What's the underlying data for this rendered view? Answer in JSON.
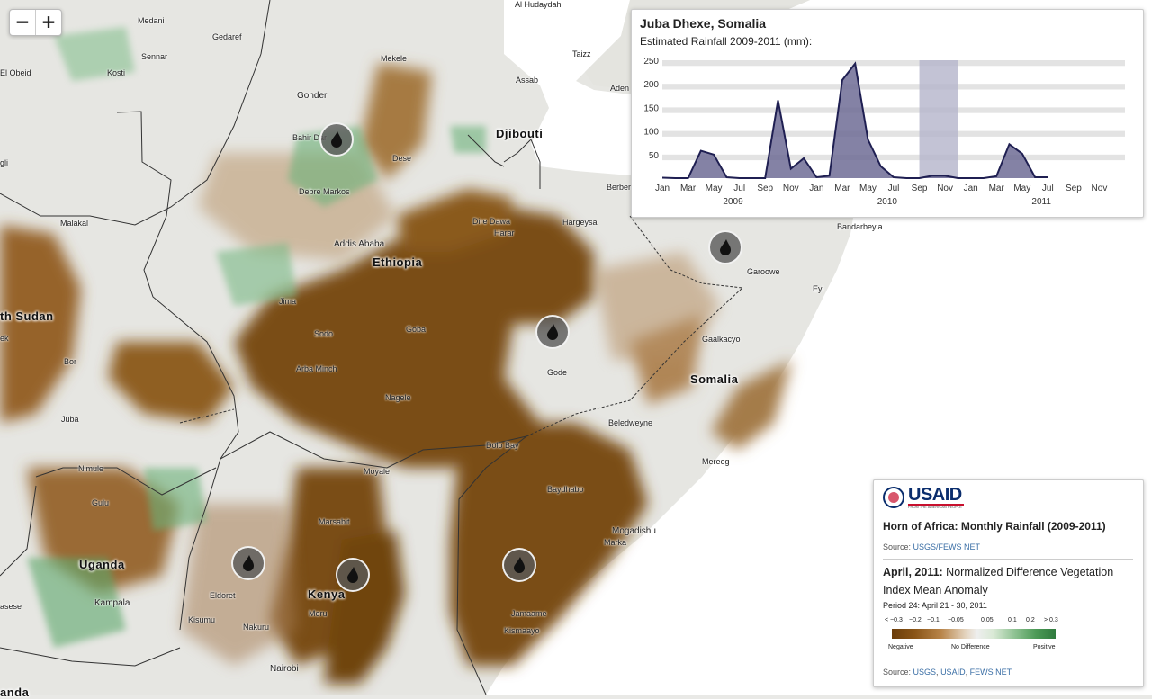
{
  "zoom": {
    "minus": "−",
    "plus": "+"
  },
  "countries": [
    {
      "label": "Djibouti"
    },
    {
      "label": "Ethiopia"
    },
    {
      "label": "th Sudan"
    },
    {
      "label": "Somalia"
    },
    {
      "label": "Uganda"
    },
    {
      "label": "Kenya"
    },
    {
      "label": "anda"
    }
  ],
  "places": [
    {
      "label": "Al Hudaydah"
    },
    {
      "label": "Medani"
    },
    {
      "label": "Gedaref"
    },
    {
      "label": "Sennar"
    },
    {
      "label": "Mekele"
    },
    {
      "label": "Taizz"
    },
    {
      "label": "El Obeid"
    },
    {
      "label": "Kosti"
    },
    {
      "label": "Assab"
    },
    {
      "label": "Aden"
    },
    {
      "label": "Gonder"
    },
    {
      "label": "Bahir Dar"
    },
    {
      "label": "Dese"
    },
    {
      "label": "gli"
    },
    {
      "label": "Debre Markos"
    },
    {
      "label": "Berbera"
    },
    {
      "label": "Malakal"
    },
    {
      "label": "Dire Dawa"
    },
    {
      "label": "Harar"
    },
    {
      "label": "Hargeysa"
    },
    {
      "label": "Bandarbeyla"
    },
    {
      "label": "Addis Ababa"
    },
    {
      "label": "Garoowe"
    },
    {
      "label": "Eyl"
    },
    {
      "label": "Jima"
    },
    {
      "label": "Goba"
    },
    {
      "label": "Sodo"
    },
    {
      "label": "Gaalkacyo"
    },
    {
      "label": "ek"
    },
    {
      "label": "Bor"
    },
    {
      "label": "Arba Minch"
    },
    {
      "label": "Gode"
    },
    {
      "label": "Nagele"
    },
    {
      "label": "Juba"
    },
    {
      "label": "Beledweyne"
    },
    {
      "label": "Dolo Bay"
    },
    {
      "label": "Nimule"
    },
    {
      "label": "Moyale"
    },
    {
      "label": "Mereeg"
    },
    {
      "label": "Gulu"
    },
    {
      "label": "Baydhabo"
    },
    {
      "label": "Marsabit"
    },
    {
      "label": "Mogadishu"
    },
    {
      "label": "Marka"
    },
    {
      "label": "Eldoret"
    },
    {
      "label": "Kampala"
    },
    {
      "label": "asese"
    },
    {
      "label": "Meru"
    },
    {
      "label": "Kisumu"
    },
    {
      "label": "Nakuru"
    },
    {
      "label": "Jamaame"
    },
    {
      "label": "Kismaayo"
    },
    {
      "label": "Nairobi"
    }
  ],
  "markers": [
    {
      "name": "bahir-dar"
    },
    {
      "name": "garoowe"
    },
    {
      "name": "gode"
    },
    {
      "name": "eldoret"
    },
    {
      "name": "meru"
    },
    {
      "name": "jamaame"
    }
  ],
  "chart_panel": {
    "title": "Juba Dhexe, Somalia",
    "subtitle": "Estimated Rainfall 2009-2011 (mm):"
  },
  "chart_data": {
    "type": "area",
    "title": "Juba Dhexe, Somalia",
    "subtitle": "Estimated Rainfall 2009-2011 (mm):",
    "ylim": [
      0,
      250
    ],
    "y_ticks": [
      "50",
      "100",
      "150",
      "200",
      "250"
    ],
    "x_tick_labels": [
      "Jan",
      "Mar",
      "May",
      "Jul",
      "Sep",
      "Nov",
      "Jan",
      "Mar",
      "May",
      "Jul",
      "Sep",
      "Nov",
      "Jan",
      "Mar",
      "May",
      "Jul",
      "Sep",
      "Nov"
    ],
    "year_labels": [
      "2009",
      "2010",
      "2011"
    ],
    "x": [
      "2009-01",
      "2009-02",
      "2009-03",
      "2009-04",
      "2009-05",
      "2009-06",
      "2009-07",
      "2009-08",
      "2009-09",
      "2009-10",
      "2009-11",
      "2009-12",
      "2010-01",
      "2010-02",
      "2010-03",
      "2010-04",
      "2010-05",
      "2010-06",
      "2010-07",
      "2010-08",
      "2010-09",
      "2010-10",
      "2010-11",
      "2010-12",
      "2011-01",
      "2011-02",
      "2011-03",
      "2011-04",
      "2011-05",
      "2011-06",
      "2011-07"
    ],
    "series": [
      {
        "values": [
          1,
          0,
          0,
          58,
          50,
          2,
          0,
          0,
          0,
          165,
          20,
          42,
          2,
          5,
          208,
          243,
          82,
          25,
          2,
          0,
          0,
          5,
          5,
          0,
          0,
          0,
          4,
          72,
          52,
          2,
          2
        ]
      }
    ],
    "highlight_range": [
      "2010-09",
      "2010-12"
    ],
    "grid": "horizontal bands",
    "colors": {
      "fill": "#6e6c95",
      "line": "#1f1f52",
      "highlight": "#b4b4cb",
      "band": "#e3e3e3"
    }
  },
  "legend": {
    "logo_text": "USAID",
    "logo_tagline": "FROM THE AMERICAN PEOPLE",
    "heading": "Horn of Africa: Monthly Rainfall (2009-2011)",
    "source_label": "Source: ",
    "source_link": "USGS/FEWS NET",
    "ndvi_date": "April, 2011:",
    "ndvi_title": " Normalized Difference Vegetation Index Mean Anomaly",
    "period": "Period 24: April 21 - 30, 2011",
    "ticks": [
      "< −0.3",
      "−0.2",
      "−0.1",
      "−0.05",
      "0.05",
      "0.1",
      "0.2",
      "> 0.3"
    ],
    "negative": "Negative",
    "no_difference": "No Difference",
    "positive": "Positive",
    "source2_label": "Source: ",
    "source2_links": [
      "USGS",
      "USAID",
      "FEWS NET"
    ],
    "colors": {
      "negative": "#6b3d0a",
      "positive": "#2f7a3d",
      "link": "#3a6ea5"
    }
  }
}
